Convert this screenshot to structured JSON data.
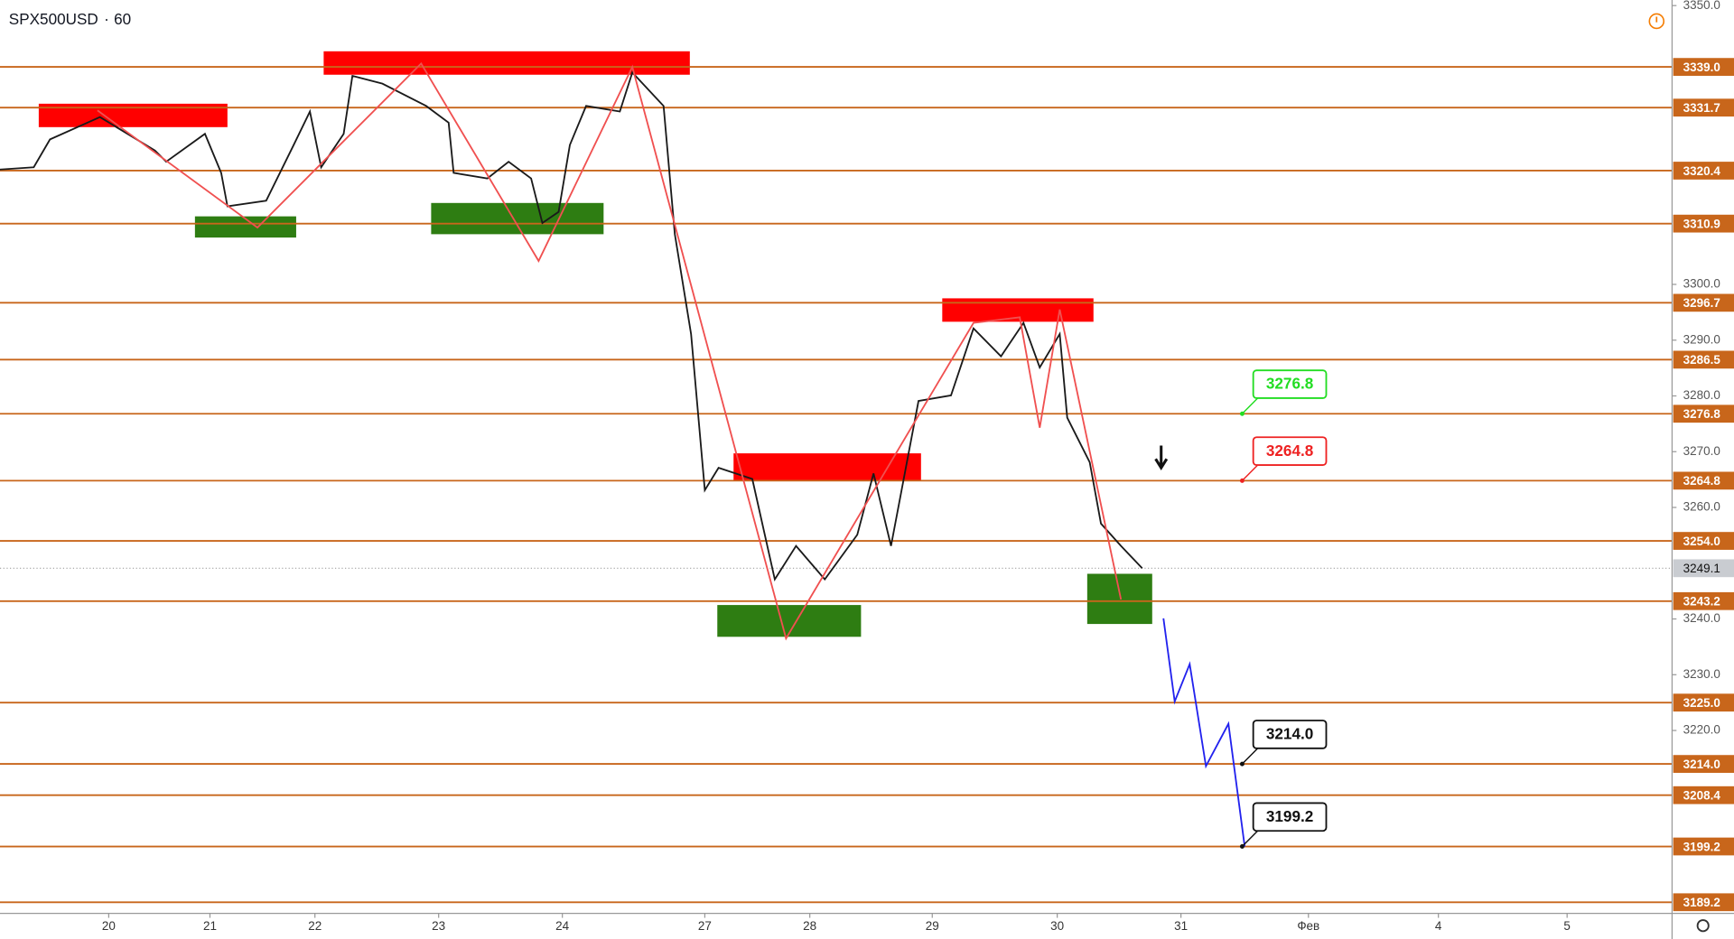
{
  "chart_data": {
    "type": "line",
    "symbol": "SPX500USD",
    "interval": "60",
    "xlim": [
      -0.87,
      12.51
    ],
    "ylim": [
      3187.2,
      3351
    ],
    "xticks": [
      {
        "value": 0,
        "label": "20"
      },
      {
        "value": 0.81,
        "label": "21"
      },
      {
        "value": 1.65,
        "label": "22"
      },
      {
        "value": 2.64,
        "label": "23"
      },
      {
        "value": 3.63,
        "label": "24"
      },
      {
        "value": 4.77,
        "label": "27"
      },
      {
        "value": 5.61,
        "label": "28"
      },
      {
        "value": 6.59,
        "label": "29"
      },
      {
        "value": 7.59,
        "label": "30"
      },
      {
        "value": 8.58,
        "label": "31"
      },
      {
        "value": 9.6,
        "label": "Фев"
      },
      {
        "value": 10.64,
        "label": "4"
      },
      {
        "value": 11.67,
        "label": "5"
      }
    ],
    "yticks": [
      {
        "value": 3350,
        "label": "3350.0"
      },
      {
        "value": 3300,
        "label": "3300.0"
      },
      {
        "value": 3290,
        "label": "3290.0"
      },
      {
        "value": 3280,
        "label": "3280.0"
      },
      {
        "value": 3270,
        "label": "3270.0"
      },
      {
        "value": 3260,
        "label": "3260.0"
      },
      {
        "value": 3240,
        "label": "3240.0"
      },
      {
        "value": 3230,
        "label": "3230.0"
      },
      {
        "value": 3220,
        "label": "3220.0"
      }
    ],
    "levels": [
      {
        "value": 3339,
        "label": "3339.0"
      },
      {
        "value": 3331.7,
        "label": "3331.7"
      },
      {
        "value": 3320.4,
        "label": "3320.4"
      },
      {
        "value": 3310.9,
        "label": "3310.9"
      },
      {
        "value": 3296.7,
        "label": "3296.7"
      },
      {
        "value": 3286.5,
        "label": "3286.5"
      },
      {
        "value": 3276.8,
        "label": "3276.8"
      },
      {
        "value": 3264.8,
        "label": "3264.8"
      },
      {
        "value": 3254,
        "label": "3254.0"
      },
      {
        "value": 3243.2,
        "label": "3243.2"
      },
      {
        "value": 3225,
        "label": "3225.0"
      },
      {
        "value": 3214,
        "label": "3214.0"
      },
      {
        "value": 3208.4,
        "label": "3208.4"
      },
      {
        "value": 3199.2,
        "label": "3199.2"
      },
      {
        "value": 3189.2,
        "label": "3189.2"
      }
    ],
    "level_color": "#c8661b",
    "current_price": 3249.1,
    "zones": [
      {
        "x": [
          -0.56,
          0.95
        ],
        "y": [
          3328.2,
          3332.4
        ],
        "color": "#ff0000"
      },
      {
        "x": [
          1.72,
          4.65
        ],
        "y": [
          3337.6,
          3341.8
        ],
        "color": "#ff0000"
      },
      {
        "x": [
          6.67,
          7.88
        ],
        "y": [
          3293.3,
          3297.5
        ],
        "color": "#ff0000"
      },
      {
        "x": [
          5.0,
          6.5
        ],
        "y": [
          3264.9,
          3269.7
        ],
        "color": "#ff0000"
      },
      {
        "x": [
          0.69,
          1.5
        ],
        "y": [
          3308.4,
          3312.2
        ],
        "color": "#2e7d12"
      },
      {
        "x": [
          2.58,
          3.96
        ],
        "y": [
          3309.0,
          3314.6
        ],
        "color": "#2e7d12"
      },
      {
        "x": [
          4.87,
          6.02
        ],
        "y": [
          3236.8,
          3242.5
        ],
        "color": "#2e7d12"
      },
      {
        "x": [
          7.83,
          8.35
        ],
        "y": [
          3239.1,
          3248.1
        ],
        "color": "#2e7d12"
      }
    ],
    "series": [
      {
        "color": "#1a1a1a",
        "x": [
          -0.87,
          -0.6,
          -0.47,
          -0.07,
          0.37,
          0.46,
          0.77,
          0.9,
          0.95,
          1.26,
          1.48,
          1.61,
          1.7,
          1.88,
          1.95,
          2.19,
          2.54,
          2.72,
          2.76,
          3.03,
          3.2,
          3.38,
          3.47,
          3.6,
          3.69,
          3.82,
          4.09,
          4.19,
          4.44,
          4.53,
          4.66,
          4.77,
          4.88,
          5.15,
          5.33,
          5.5,
          5.73,
          5.99,
          6.12,
          6.26,
          6.48,
          6.74,
          6.92,
          7.14,
          7.32,
          7.45,
          7.61,
          7.67,
          7.85,
          7.94,
          8.1,
          8.27
        ],
        "values": [
          3320.6,
          3321.0,
          3326.0,
          3330.0,
          3324.0,
          3322.0,
          3327.0,
          3320.0,
          3314.0,
          3315.0,
          3325.0,
          3331.0,
          3321.0,
          3327.0,
          3337.4,
          3336.0,
          3332.0,
          3329.0,
          3320.0,
          3319.0,
          3322.0,
          3319.0,
          3311.0,
          3313.0,
          3325.0,
          3332.0,
          3331.0,
          3338.0,
          3332.0,
          3309.0,
          3291.1,
          3263.1,
          3267.1,
          3265.1,
          3247.1,
          3253.1,
          3247.1,
          3255.1,
          3266.1,
          3253.1,
          3279.1,
          3280.1,
          3292.1,
          3287.1,
          3293.1,
          3285.1,
          3291.1,
          3276.1,
          3268.1,
          3257.1,
          3253.1,
          3249.1
        ]
      },
      {
        "color": "#f05050",
        "x": [
          -0.09,
          1.19,
          2.5,
          3.44,
          4.19,
          5.42,
          6.92,
          7.29,
          7.45,
          7.61,
          8.1
        ],
        "values": [
          3331.2,
          3310.2,
          3339.6,
          3304.2,
          3339.0,
          3236.5,
          3293.1,
          3294.1,
          3274.3,
          3295.5,
          3243.5
        ]
      },
      {
        "color": "#2222ee",
        "x": [
          8.44,
          8.53,
          8.65,
          8.78,
          8.96,
          9.09
        ],
        "values": [
          3240.1,
          3225.2,
          3231.9,
          3213.6,
          3221.2,
          3199.2
        ]
      }
    ],
    "callouts": [
      {
        "value": 3276.8,
        "label": "3276.8",
        "x": 9.07,
        "color": "#22dd22"
      },
      {
        "value": 3264.8,
        "label": "3264.8",
        "x": 9.07,
        "color": "#ee2222"
      },
      {
        "value": 3214,
        "label": "3214.0",
        "x": 9.07,
        "color": "#111111"
      },
      {
        "value": 3199.2,
        "label": "3199.2",
        "x": 9.07,
        "color": "#111111"
      }
    ]
  }
}
